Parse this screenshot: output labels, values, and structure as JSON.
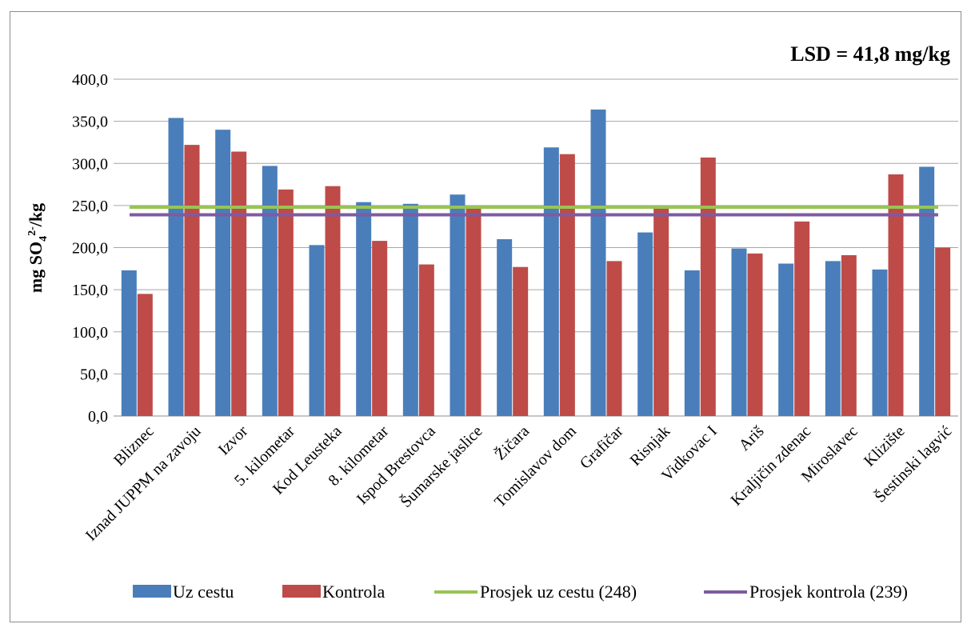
{
  "chart_data": {
    "type": "bar",
    "annotation": "LSD = 41,8 mg/kg",
    "ylabel": {
      "main": "mg SO",
      "sub": "4",
      "sup": "2-",
      "tail": "/kg"
    },
    "ylim": [
      0,
      400
    ],
    "yticks": [
      "0,0",
      "50,0",
      "100,0",
      "150,0",
      "200,0",
      "250,0",
      "300,0",
      "350,0",
      "400,0"
    ],
    "grid": true,
    "legend_position": "bottom",
    "categories": [
      "Bliznec",
      "Iznad JUPPM na zavoju",
      "Izvor",
      "5. kilometar",
      "Kod Leusteka",
      "8. kilometar",
      "Ispod Brestovca",
      "Šumarske jaslice",
      "Žičara",
      "Tomislavov dom",
      "Grafičar",
      "Risnjak",
      "Vidkovac I",
      "Ariš",
      "Kraljičin zdenac",
      "Miroslavec",
      "Klizište",
      "Šestinski lagvić"
    ],
    "series": [
      {
        "name": "Uz cestu",
        "color": "#4a7ebb",
        "values": [
          173,
          354,
          340,
          297,
          203,
          254,
          252,
          263,
          210,
          319,
          364,
          218,
          173,
          199,
          181,
          184,
          174,
          296
        ]
      },
      {
        "name": "Kontrola",
        "color": "#be4b48",
        "values": [
          145,
          322,
          314,
          269,
          273,
          208,
          180,
          248,
          177,
          311,
          184,
          249,
          307,
          193,
          231,
          191,
          287,
          200
        ]
      }
    ],
    "lines": [
      {
        "name": "Prosjek uz cestu (248)",
        "value": 248,
        "color": "#98c454"
      },
      {
        "name": "Prosjek kontrola (239)",
        "value": 239,
        "color": "#7e5ba1"
      }
    ]
  }
}
